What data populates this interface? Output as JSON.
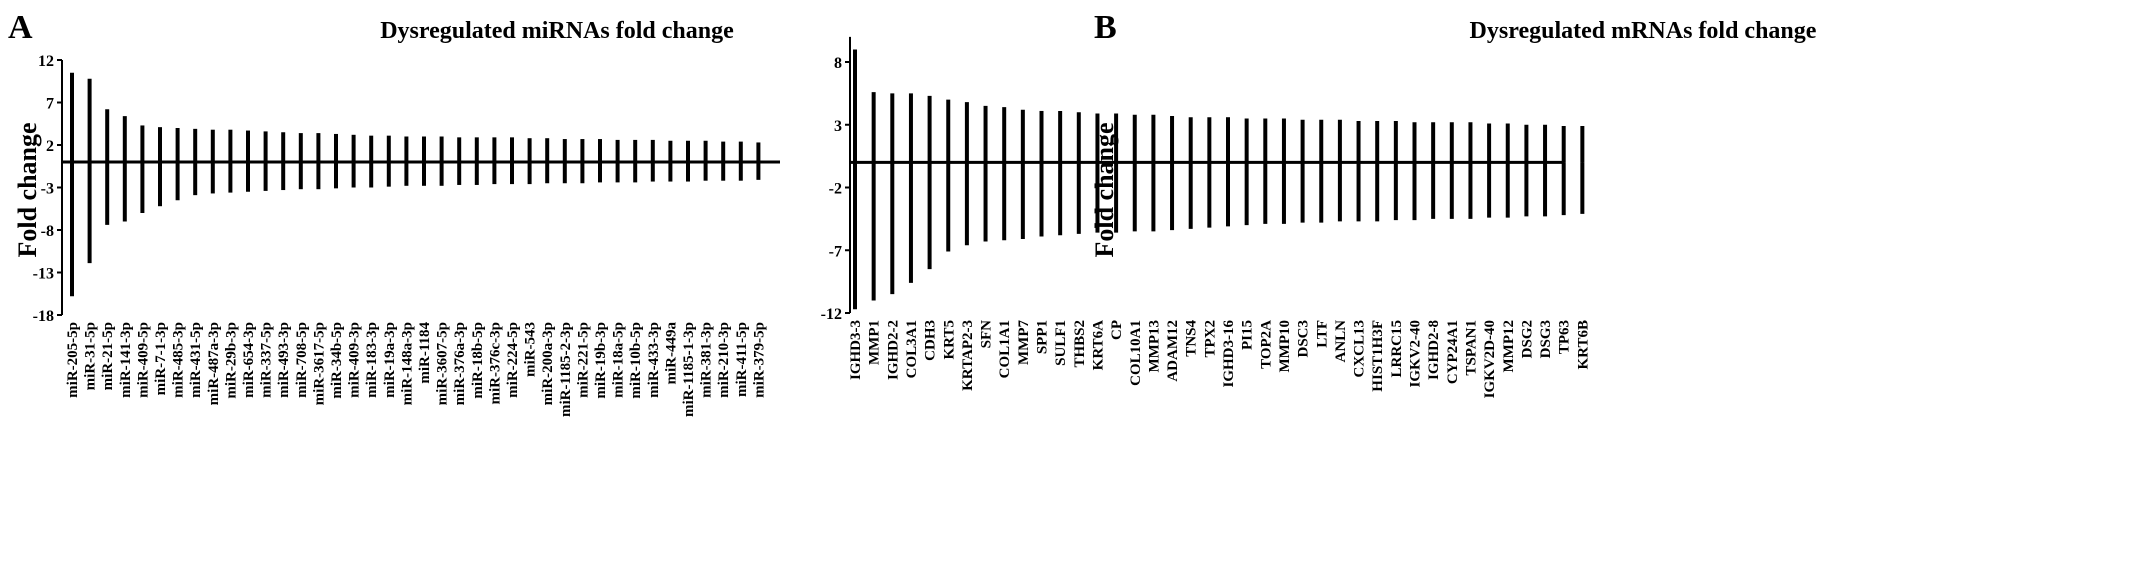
{
  "chart_data": [
    {
      "panel": "A",
      "type": "bar",
      "title": "Dysregulated miRNAs fold change",
      "xlabel": "",
      "ylabel": "Fold  change",
      "ylim": [
        -18,
        12
      ],
      "yticks": [
        12,
        7,
        2,
        -3,
        -8,
        -13,
        -18
      ],
      "grid": false,
      "categories": [
        "miR-205-5p",
        "miR-31-5p",
        "miR-21-5p",
        "miR-141-3p",
        "miR-409-5p",
        "miR-7-1-3p",
        "miR-485-3p",
        "miR-431-5p",
        "miR-487a-3p",
        "miR-29b-3p",
        "miR-654-3p",
        "miR-337-5p",
        "miR-493-3p",
        "miR-708-5p",
        "miR-3617-5p",
        "miR-34b-5p",
        "miR-409-3p",
        "miR-183-3p",
        "miR-19a-3p",
        "miR-148a-3p",
        "miR-1184",
        "miR-3607-5p",
        "miR-376a-3p",
        "miR-18b-5p",
        "miR-376c-3p",
        "miR-224-5p",
        "miR-543",
        "miR-200a-3p",
        "miR-1185-2-3p",
        "miR-221-5p",
        "miR-19b-3p",
        "miR-18a-5p",
        "miR-10b-5p",
        "miR-433-3p",
        "miR-449a",
        "miR-1185-1-3p",
        "miR-381-3p",
        "miR-210-3p",
        "miR-411-5p",
        "miR-379-5p"
      ],
      "series": [
        {
          "values": [
            10.5,
            9.8,
            6.2,
            5.4,
            4.3,
            4.1,
            4.0,
            3.9,
            3.8,
            3.8,
            3.7,
            3.6,
            3.5,
            3.4,
            3.4,
            3.3,
            3.2,
            3.1,
            3.1,
            3.0,
            3.0,
            3.0,
            2.9,
            2.9,
            2.9,
            2.9,
            2.8,
            2.8,
            2.7,
            2.7,
            2.7,
            2.6,
            2.6,
            2.6,
            2.5,
            2.5,
            2.5,
            2.4,
            2.4,
            2.3
          ]
        },
        {
          "values": [
            -15.8,
            -11.9,
            -7.4,
            -7.0,
            -6.0,
            -5.2,
            -4.5,
            -3.9,
            -3.7,
            -3.6,
            -3.5,
            -3.4,
            -3.3,
            -3.2,
            -3.2,
            -3.1,
            -3.0,
            -3.0,
            -2.9,
            -2.8,
            -2.8,
            -2.8,
            -2.7,
            -2.7,
            -2.6,
            -2.6,
            -2.6,
            -2.5,
            -2.5,
            -2.5,
            -2.4,
            -2.4,
            -2.4,
            -2.3,
            -2.3,
            -2.3,
            -2.2,
            -2.2,
            -2.2,
            -2.1
          ]
        }
      ]
    },
    {
      "panel": "B",
      "type": "bar",
      "title": "Dysregulated mRNAs fold change",
      "xlabel": "",
      "ylabel": "Fold  change",
      "ylim": [
        -12,
        10
      ],
      "yticks": [
        8,
        3,
        -2,
        -7,
        -12
      ],
      "grid": false,
      "categories": [
        "IGHD3-3",
        "MMP1",
        "IGHD2-2",
        "COL3A1",
        "CDH3",
        "KRT5",
        "KRTAP2-3",
        "SFN",
        "COL1A1",
        "MMP7",
        "SPP1",
        "SULF1",
        "THBS2",
        "KRT6A",
        "CP",
        "COL10A1",
        "MMP13",
        "ADAM12",
        "TNS4",
        "TPX2",
        "IGHD3-16",
        "PI15",
        "TOP2A",
        "MMP10",
        "DSC3",
        "LTF",
        "ANLN",
        "CXCL13",
        "HIST1H3F",
        "LRRC15",
        "IGKV2-40",
        "IGHD2-8",
        "CYP24A1",
        "TSPAN1",
        "IGKV2D-40",
        "MMP12",
        "DSG2",
        "DSG3",
        "TP63",
        "KRT6B"
      ],
      "series": [
        {
          "values": [
            9.0,
            5.6,
            5.5,
            5.5,
            5.3,
            5.0,
            4.8,
            4.5,
            4.4,
            4.2,
            4.1,
            4.1,
            4.0,
            3.9,
            3.9,
            3.8,
            3.8,
            3.7,
            3.6,
            3.6,
            3.6,
            3.5,
            3.5,
            3.5,
            3.4,
            3.4,
            3.4,
            3.3,
            3.3,
            3.3,
            3.2,
            3.2,
            3.2,
            3.2,
            3.1,
            3.1,
            3.0,
            3.0,
            2.9,
            2.9
          ]
        },
        {
          "values": [
            -11.7,
            -11.0,
            -10.5,
            -9.6,
            -8.5,
            -7.1,
            -6.6,
            -6.3,
            -6.2,
            -6.1,
            -5.9,
            -5.8,
            -5.7,
            -5.6,
            -5.6,
            -5.5,
            -5.5,
            -5.4,
            -5.3,
            -5.2,
            -5.1,
            -5.0,
            -4.9,
            -4.9,
            -4.8,
            -4.8,
            -4.7,
            -4.7,
            -4.7,
            -4.6,
            -4.6,
            -4.5,
            -4.5,
            -4.5,
            -4.4,
            -4.4,
            -4.3,
            -4.3,
            -4.2,
            -4.1
          ]
        }
      ]
    }
  ]
}
